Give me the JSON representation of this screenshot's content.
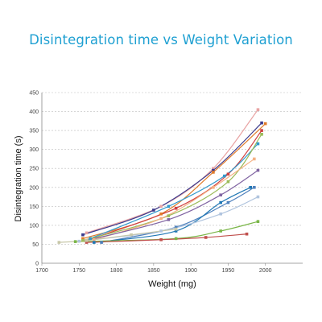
{
  "chart_data": {
    "type": "line",
    "title": "Disintegration time vs Weight Variation",
    "xlabel": "Weight (mg)",
    "ylabel": "Disintegration time (s)",
    "xlim": [
      1700,
      2050
    ],
    "ylim": [
      0,
      450
    ],
    "xticks": [
      "1700",
      "1750",
      "1800",
      "1850",
      "1900",
      "1950",
      "2000"
    ],
    "yticks": [
      "0",
      "50",
      "100",
      "150",
      "200",
      "250",
      "300",
      "350",
      "400",
      "450"
    ],
    "grid": "horizontal dashed",
    "series": [
      {
        "color": "#e8a3a3",
        "x": [
          1760,
          1860,
          1930,
          1990
        ],
        "y": [
          80,
          150,
          250,
          405
        ]
      },
      {
        "color": "#3a3a8c",
        "x": [
          1755,
          1850,
          1930,
          1995
        ],
        "y": [
          75,
          140,
          245,
          370
        ]
      },
      {
        "color": "#e07b2a",
        "x": [
          1755,
          1860,
          1930,
          2000
        ],
        "y": [
          65,
          130,
          240,
          368
        ]
      },
      {
        "color": "#d04040",
        "x": [
          1760,
          1880,
          1950,
          1995
        ],
        "y": [
          60,
          145,
          235,
          350
        ]
      },
      {
        "color": "#3399cc",
        "x": [
          1765,
          1870,
          1945,
          1990
        ],
        "y": [
          65,
          150,
          230,
          315
        ]
      },
      {
        "color": "#9bbb59",
        "x": [
          1755,
          1870,
          1950,
          1995
        ],
        "y": [
          60,
          125,
          215,
          340
        ]
      },
      {
        "color": "#f4b183",
        "x": [
          1770,
          1860,
          1930,
          1985
        ],
        "y": [
          62,
          118,
          200,
          275
        ]
      },
      {
        "color": "#8064a2",
        "x": [
          1760,
          1870,
          1940,
          1990
        ],
        "y": [
          60,
          115,
          180,
          245
        ]
      },
      {
        "color": "#4f81bd",
        "x": [
          1780,
          1880,
          1950,
          1985
        ],
        "y": [
          55,
          95,
          160,
          200
        ]
      },
      {
        "color": "#1f77b4",
        "x": [
          1770,
          1880,
          1940,
          1980
        ],
        "y": [
          55,
          85,
          160,
          200
        ]
      },
      {
        "color": "#b0c4de",
        "x": [
          1750,
          1860,
          1940,
          1990
        ],
        "y": [
          58,
          85,
          130,
          175
        ]
      },
      {
        "color": "#7ab648",
        "x": [
          1745,
          1880,
          1940,
          1990
        ],
        "y": [
          57,
          65,
          85,
          110
        ]
      },
      {
        "color": "#c0504d",
        "x": [
          1760,
          1860,
          1920,
          1975
        ],
        "y": [
          55,
          62,
          68,
          77
        ]
      },
      {
        "color": "#c8c8a9",
        "x": [
          1723,
          1760,
          1820,
          1880
        ],
        "y": [
          55,
          60,
          75,
          90
        ]
      }
    ]
  }
}
